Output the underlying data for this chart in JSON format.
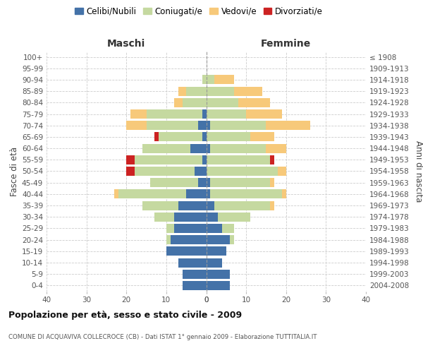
{
  "age_groups_bottom_to_top": [
    "0-4",
    "5-9",
    "10-14",
    "15-19",
    "20-24",
    "25-29",
    "30-34",
    "35-39",
    "40-44",
    "45-49",
    "50-54",
    "55-59",
    "60-64",
    "65-69",
    "70-74",
    "75-79",
    "80-84",
    "85-89",
    "90-94",
    "95-99",
    "100+"
  ],
  "birth_years_bottom_to_top": [
    "2004-2008",
    "1999-2003",
    "1994-1998",
    "1989-1993",
    "1984-1988",
    "1979-1983",
    "1974-1978",
    "1969-1973",
    "1964-1968",
    "1959-1963",
    "1954-1958",
    "1949-1953",
    "1944-1948",
    "1939-1943",
    "1934-1938",
    "1929-1933",
    "1924-1928",
    "1919-1923",
    "1914-1918",
    "1909-1913",
    "≤ 1908"
  ],
  "colors": {
    "celibi": "#4472a8",
    "coniugati": "#c5d9a0",
    "vedovi": "#f7c97a",
    "divorziati": "#cc2222"
  },
  "maschi": {
    "celibi": [
      6,
      6,
      7,
      10,
      9,
      8,
      8,
      7,
      5,
      2,
      3,
      1,
      4,
      1,
      2,
      1,
      0,
      0,
      0,
      0,
      0
    ],
    "coniugati": [
      0,
      0,
      0,
      0,
      1,
      2,
      5,
      9,
      17,
      12,
      15,
      17,
      12,
      11,
      13,
      14,
      6,
      5,
      1,
      0,
      0
    ],
    "vedovi": [
      0,
      0,
      0,
      0,
      0,
      0,
      0,
      0,
      1,
      0,
      0,
      0,
      0,
      0,
      5,
      4,
      2,
      2,
      0,
      0,
      0
    ],
    "divorziati": [
      0,
      0,
      0,
      0,
      0,
      0,
      0,
      0,
      0,
      0,
      2,
      2,
      0,
      1,
      0,
      0,
      0,
      0,
      0,
      0,
      0
    ]
  },
  "femmine": {
    "celibi": [
      6,
      6,
      4,
      5,
      6,
      4,
      3,
      2,
      1,
      1,
      0,
      0,
      1,
      0,
      1,
      0,
      0,
      0,
      0,
      0,
      0
    ],
    "coniugati": [
      0,
      0,
      0,
      0,
      1,
      3,
      8,
      14,
      18,
      15,
      18,
      16,
      14,
      11,
      14,
      10,
      8,
      7,
      2,
      0,
      0
    ],
    "vedovi": [
      0,
      0,
      0,
      0,
      0,
      0,
      0,
      1,
      1,
      1,
      2,
      0,
      5,
      6,
      11,
      9,
      8,
      7,
      5,
      0,
      0
    ],
    "divorziati": [
      0,
      0,
      0,
      0,
      0,
      0,
      0,
      0,
      0,
      0,
      0,
      1,
      0,
      0,
      0,
      0,
      0,
      0,
      0,
      0,
      0
    ]
  },
  "title": "Popolazione per età, sesso e stato civile - 2009",
  "subtitle": "COMUNE DI ACQUAVIVA COLLECROCE (CB) - Dati ISTAT 1° gennaio 2009 - Elaborazione TUTTITALIA.IT",
  "ylabel": "Fasce di età",
  "ylabel_right": "Anni di nascita",
  "xlabel_left": "Maschi",
  "xlabel_right": "Femmine",
  "xlim": 40,
  "xticks": [
    40,
    30,
    20,
    10,
    0,
    10,
    20,
    30,
    40
  ],
  "legend_labels": [
    "Celibi/Nubili",
    "Coniugati/e",
    "Vedovi/e",
    "Divorziati/e"
  ],
  "background_color": "#ffffff"
}
